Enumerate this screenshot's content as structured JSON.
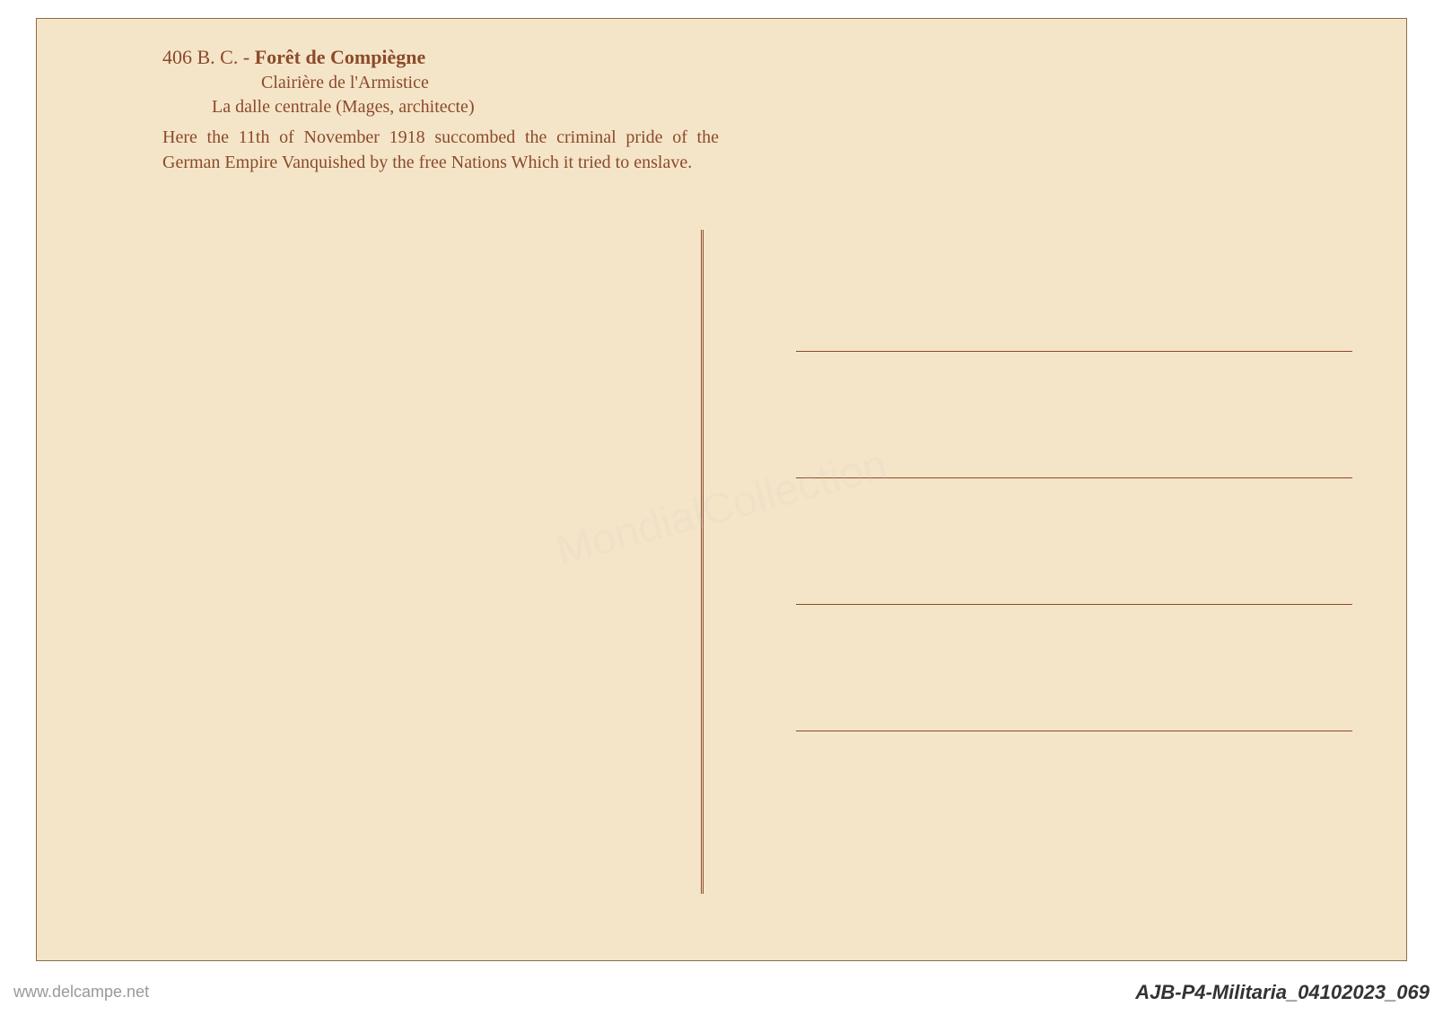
{
  "postcard": {
    "background_color": "#f5e5c8",
    "border_color": "#8b6f47",
    "text_color": "#8b4a2b",
    "header": {
      "number": "406",
      "prefix": "B. C. - ",
      "title": "Forêt de Compiègne",
      "subtitle1": "Clairière de l'Armistice",
      "subtitle2": "La dalle centrale (Mages, architecte)",
      "description": "Here the 11th of November 1918 succombed the criminal pride of the German Empire Vanquished by the free Nations Which it tried to enslave."
    },
    "divider": {
      "color": "#8b4a2b"
    },
    "address_line_color": "#8b4a2b"
  },
  "watermarks": {
    "left": "www.delcampe.net",
    "right": "AJB-P4-Militaria_04102023_069",
    "center": "MondialCollection"
  }
}
